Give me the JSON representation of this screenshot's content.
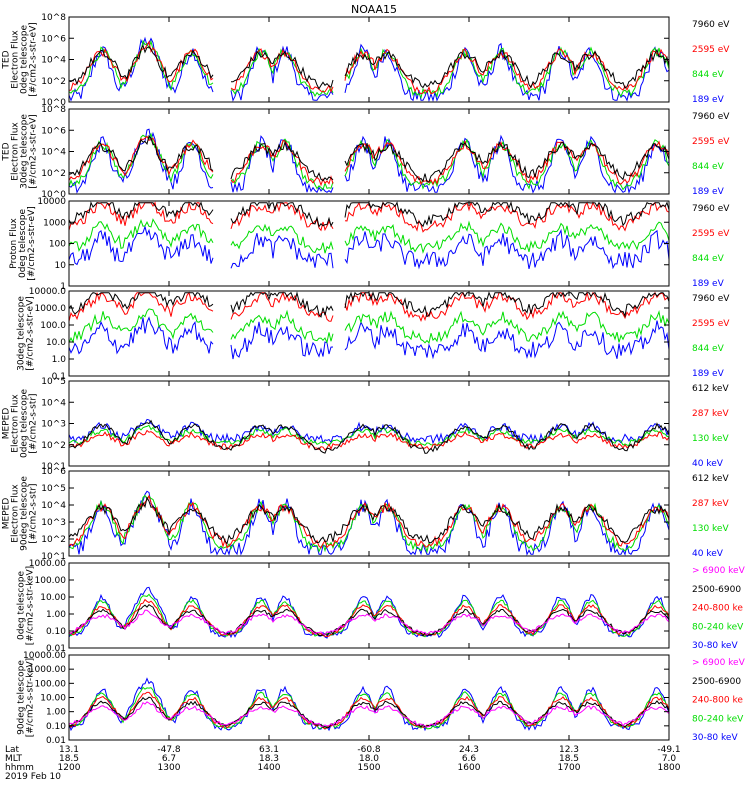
{
  "title": "NOAA15",
  "colors": {
    "black": "#000000",
    "red": "#ff0000",
    "green": "#00dd00",
    "blue": "#0000ff",
    "magenta": "#ff00ff"
  },
  "chart_data": [
    {
      "type": "line",
      "ylabel_lines": [
        "TED",
        "Electron Flux",
        "0deg telescope",
        "[#/cm2-s-str-eV]"
      ],
      "ytick_labels": [
        "10^0",
        "10^2",
        "10^4",
        "10^6",
        "10^8"
      ],
      "yscale": "log",
      "ylim": [
        1,
        100000000
      ],
      "legend": [
        {
          "label": "7960 eV",
          "color": "black"
        },
        {
          "label": "2595 eV",
          "color": "red"
        },
        {
          "label": "844 eV",
          "color": "green"
        },
        {
          "label": "189 eV",
          "color": "blue"
        }
      ]
    },
    {
      "type": "line",
      "ylabel_lines": [
        "TED",
        "Electron Flux",
        "30deg telescope",
        "[#/cm2-s-str-eV]"
      ],
      "ytick_labels": [
        "10^0",
        "10^2",
        "10^4",
        "10^6",
        "10^8"
      ],
      "yscale": "log",
      "ylim": [
        1,
        100000000
      ],
      "legend": [
        {
          "label": "7960 eV",
          "color": "black"
        },
        {
          "label": "2595 eV",
          "color": "red"
        },
        {
          "label": "844 eV",
          "color": "green"
        },
        {
          "label": "189 eV",
          "color": "blue"
        }
      ]
    },
    {
      "type": "line",
      "ylabel_lines": [
        "Proton Flux",
        "0deg telescope",
        "[#/cm2-s-str-eV]"
      ],
      "ytick_labels": [
        "1",
        "10",
        "100",
        "1000",
        "10000"
      ],
      "yscale": "log",
      "ylim": [
        1,
        10000
      ],
      "legend": [
        {
          "label": "7960 eV",
          "color": "black"
        },
        {
          "label": "2595 eV",
          "color": "red"
        },
        {
          "label": "844 eV",
          "color": "green"
        },
        {
          "label": "189 eV",
          "color": "blue"
        }
      ]
    },
    {
      "type": "line",
      "ylabel_lines": [
        "30deg telescope",
        "[#/cm2-s-str-eV]"
      ],
      "ytick_labels": [
        "0.1",
        "1.0",
        "10.0",
        "100.0",
        "1000.0",
        "10000.0"
      ],
      "yscale": "log",
      "ylim": [
        0.1,
        10000
      ],
      "legend": [
        {
          "label": "7960 eV",
          "color": "black"
        },
        {
          "label": "2595 eV",
          "color": "red"
        },
        {
          "label": "844 eV",
          "color": "green"
        },
        {
          "label": "189 eV",
          "color": "blue"
        }
      ]
    },
    {
      "type": "line",
      "ylabel_lines": [
        "MEPED",
        "Electron Flux",
        "0deg telescope",
        "[#/cm2-s-str]"
      ],
      "ytick_labels": [
        "10^1",
        "10^2",
        "10^3",
        "10^4",
        "10^5"
      ],
      "yscale": "log",
      "ylim": [
        10,
        100000
      ],
      "legend": [
        {
          "label": "612 keV",
          "color": "black"
        },
        {
          "label": "287 keV",
          "color": "red"
        },
        {
          "label": "130 keV",
          "color": "green"
        },
        {
          "label": "40 keV",
          "color": "blue"
        }
      ]
    },
    {
      "type": "line",
      "ylabel_lines": [
        "MEPED",
        "Electron Flux",
        "90deg telescope",
        "[#/cm2-s-str]"
      ],
      "ytick_labels": [
        "10^1",
        "10^2",
        "10^3",
        "10^4",
        "10^5",
        "10^6"
      ],
      "yscale": "log",
      "ylim": [
        10,
        1000000
      ],
      "legend": [
        {
          "label": "612 keV",
          "color": "black"
        },
        {
          "label": "287 keV",
          "color": "red"
        },
        {
          "label": "130 keV",
          "color": "green"
        },
        {
          "label": "40 keV",
          "color": "blue"
        }
      ]
    },
    {
      "type": "line",
      "ylabel_lines": [
        "0deg telescope",
        "[#/cm2-s-str-keV]"
      ],
      "ytick_labels": [
        "0.01",
        "0.10",
        "1.00",
        "10.00",
        "100.00",
        "1000.00"
      ],
      "yscale": "log",
      "ylim": [
        0.01,
        1000
      ],
      "legend": [
        {
          "label": "> 6900 keV",
          "color": "magenta"
        },
        {
          "label": "2500-6900",
          "color": "black"
        },
        {
          "label": "240-800 ke",
          "color": "red"
        },
        {
          "label": "80-240 keV",
          "color": "green"
        },
        {
          "label": "30-80 keV",
          "color": "blue"
        }
      ]
    },
    {
      "type": "line",
      "ylabel_lines": [
        "90deg telescope",
        "[#/cm2-s-str-keV]"
      ],
      "ytick_labels": [
        "0.01",
        "0.10",
        "1.00",
        "10.00",
        "100.00",
        "1000.00",
        "10000.00"
      ],
      "yscale": "log",
      "ylim": [
        0.01,
        10000
      ],
      "legend": [
        {
          "label": "> 6900 keV",
          "color": "magenta"
        },
        {
          "label": "2500-6900",
          "color": "black"
        },
        {
          "label": "240-800 ke",
          "color": "red"
        },
        {
          "label": "80-240 keV",
          "color": "green"
        },
        {
          "label": "30-80 keV",
          "color": "blue"
        }
      ]
    }
  ],
  "xaxis": {
    "row_labels": [
      "Lat",
      "MLT",
      "hhmm"
    ],
    "date": "2019 Feb 10",
    "ticks": [
      {
        "lat": "13.1",
        "mlt": "18.5",
        "time": "1200"
      },
      {
        "lat": "-47.8",
        "mlt": "6.7",
        "time": "1300"
      },
      {
        "lat": "63.1",
        "mlt": "18.3",
        "time": "1400"
      },
      {
        "lat": "-60.8",
        "mlt": "18.0",
        "time": "1500"
      },
      {
        "lat": "24.3",
        "mlt": "6.6",
        "time": "1600"
      },
      {
        "lat": "12.3",
        "mlt": "18.5",
        "time": "1700"
      },
      {
        "lat": "-49.1",
        "mlt": "7.0",
        "time": "1800"
      }
    ]
  }
}
